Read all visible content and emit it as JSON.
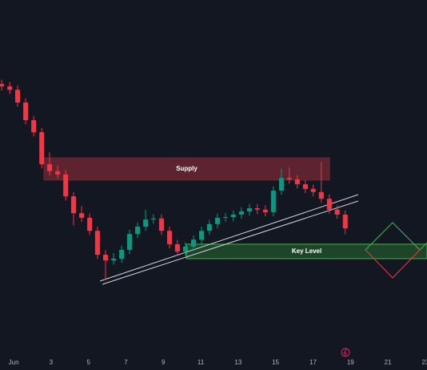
{
  "chart_data": {
    "type": "candlestick",
    "x": [
      0.36,
      0.79,
      1.21,
      1.64,
      2.07,
      2.5,
      2.92,
      3.35,
      3.78,
      4.2,
      4.63,
      5.06,
      5.48,
      5.91,
      6.34,
      6.77,
      7.19,
      7.62,
      8.05,
      8.47,
      8.9,
      9.33,
      9.75,
      10.18,
      10.61,
      11.04,
      11.46,
      11.89,
      12.32,
      12.74,
      13.17,
      13.6,
      14.02,
      14.45,
      14.88,
      15.31,
      15.73,
      16.16,
      16.59,
      17.01,
      17.44,
      17.87,
      18.29,
      18.72
    ],
    "open": [
      76.2,
      75.5,
      74.5,
      70.9,
      65.9,
      62.5,
      53.4,
      51.4,
      50.5,
      44.3,
      39.5,
      38.2,
      34.5,
      27.7,
      26.1,
      26.6,
      29.1,
      33.6,
      35.7,
      37.7,
      38.0,
      34.5,
      30.7,
      28.6,
      30.0,
      32.0,
      34.5,
      36.4,
      38.2,
      38.4,
      39.1,
      40.0,
      40.9,
      40.5,
      39.8,
      45.9,
      49.5,
      49.1,
      47.7,
      46.4,
      45.5,
      43.6,
      40.5,
      39.1
    ],
    "high": [
      77.4,
      76.7,
      75.7,
      72.1,
      67.1,
      63.7,
      56.8,
      53.0,
      51.7,
      45.5,
      41.6,
      39.4,
      35.7,
      29.0,
      28.2,
      30.3,
      34.8,
      36.9,
      40.5,
      39.2,
      39.2,
      35.7,
      31.9,
      31.2,
      33.2,
      35.7,
      37.6,
      39.4,
      39.6,
      40.3,
      41.2,
      42.1,
      42.1,
      41.7,
      47.1,
      52.2,
      52.5,
      50.3,
      48.9,
      47.6,
      54.0,
      44.8,
      41.7,
      40.3
    ],
    "low": [
      74.3,
      73.3,
      69.7,
      64.7,
      61.3,
      52.2,
      50.2,
      49.3,
      43.1,
      36.0,
      37.0,
      33.3,
      26.5,
      20.5,
      24.9,
      25.4,
      27.9,
      32.4,
      34.5,
      36.5,
      33.3,
      29.5,
      27.4,
      27.4,
      28.8,
      30.8,
      33.3,
      35.2,
      37.0,
      37.2,
      37.9,
      38.8,
      39.3,
      38.6,
      38.6,
      44.7,
      47.9,
      46.5,
      45.2,
      44.3,
      42.4,
      39.3,
      37.9,
      33.5
    ],
    "close": [
      75.5,
      74.5,
      70.9,
      65.9,
      62.5,
      53.4,
      51.4,
      50.5,
      44.3,
      39.5,
      38.2,
      34.5,
      27.7,
      26.1,
      26.6,
      29.1,
      33.6,
      35.7,
      37.7,
      38.0,
      34.5,
      30.7,
      28.6,
      30.0,
      32.0,
      34.5,
      36.4,
      38.2,
      38.4,
      39.1,
      40.0,
      40.9,
      40.5,
      39.8,
      45.9,
      49.5,
      49.1,
      47.7,
      46.4,
      45.5,
      43.6,
      40.5,
      39.1,
      35.2
    ],
    "up_color": "#089981",
    "down_color": "#f23645",
    "xlim": [
      0.27,
      23.09
    ],
    "ylim": [
      0,
      100
    ],
    "xticks": [
      {
        "value": 1,
        "label": "Jun"
      },
      3,
      5,
      7,
      9,
      11,
      13,
      15,
      17,
      19,
      21,
      23
    ],
    "zones": [
      {
        "label": "Supply",
        "xrange": [
          2.62,
          17.88
        ],
        "range": [
          48.9,
          55.2
        ],
        "color": "#6b2733",
        "border": "#6b2733"
      },
      {
        "label": "Key Level",
        "xrange": [
          10.23,
          23.09
        ],
        "range": [
          26.6,
          30.7
        ],
        "color": "#1f4d2c",
        "border": "#4caf50"
      }
    ]
  }
}
